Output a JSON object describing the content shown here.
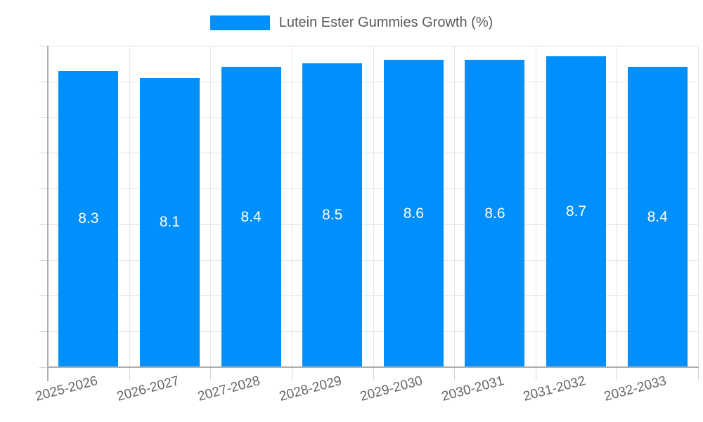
{
  "chart_data": {
    "type": "bar",
    "title": "Lutein Ester Gummies Growth (%)",
    "legend": {
      "label": "Lutein Ester Gummies Growth (%)",
      "position": "top",
      "marker": "rect"
    },
    "categories": [
      "2025-2026",
      "2026-2027",
      "2027-2028",
      "2028-2029",
      "2029-2030",
      "2030-2031",
      "2031-2032",
      "2032-2033"
    ],
    "values": [
      8.3,
      8.1,
      8.4,
      8.5,
      8.6,
      8.6,
      8.7,
      8.4
    ],
    "data_labels": [
      "8.3",
      "8.1",
      "8.4",
      "8.5",
      "8.6",
      "8.6",
      "8.7",
      "8.4"
    ],
    "xlabel": "",
    "ylabel": "",
    "ylim": [
      0,
      9
    ],
    "ytick_step": 1,
    "yticks": [
      0,
      1,
      2,
      3,
      4,
      5,
      6,
      7,
      8,
      9
    ],
    "grid": true,
    "x_label_rotation_deg": -15,
    "colors": {
      "bar": "#008FFB",
      "bar_label": "#ffffff",
      "legend_text": "#595959",
      "axis_text": "#666666",
      "grid": "#e4e4e4",
      "axis": "#aeaeae",
      "tick": "#d4d4d4",
      "background": "#ffffff"
    }
  }
}
